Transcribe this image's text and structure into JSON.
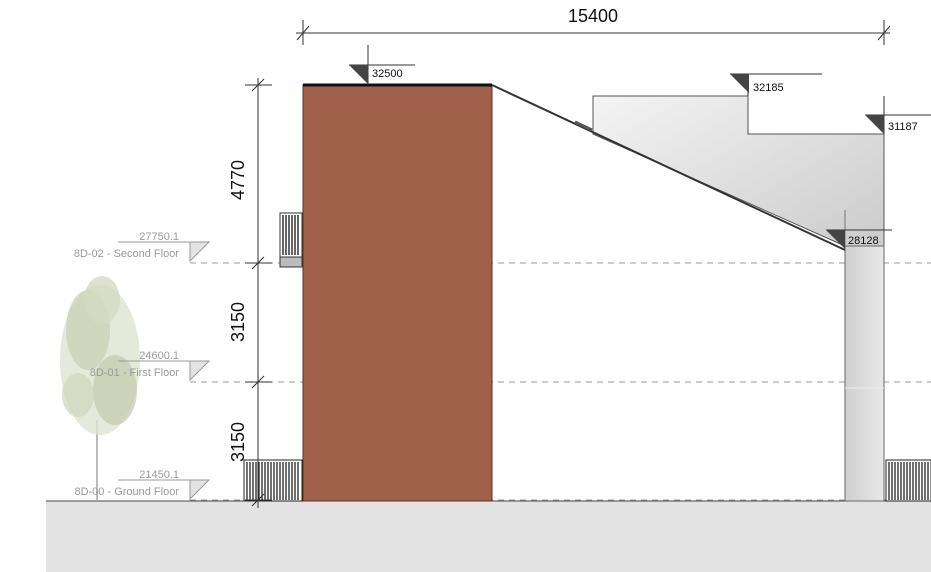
{
  "overall_dimension": "15400",
  "vertical_dimensions": {
    "top": "4770",
    "middle": "3150",
    "bottom": "3150"
  },
  "spot_elevations": {
    "roof_left": "32500",
    "roof_mid": "32185",
    "roof_right": "31187",
    "eave_right": "28128"
  },
  "levels": [
    {
      "value": "27750.1",
      "name": "8D-02 - Second Floor"
    },
    {
      "value": "24600.1",
      "name": "8D-01 - First Floor"
    },
    {
      "value": "21450.1",
      "name": "8D-00 - Ground Floor"
    }
  ],
  "colors": {
    "brick": "#a0604a",
    "ground": "#e3e3e3",
    "gray_wall": "#d6d6d6",
    "level_line": "#9a9a9a"
  }
}
